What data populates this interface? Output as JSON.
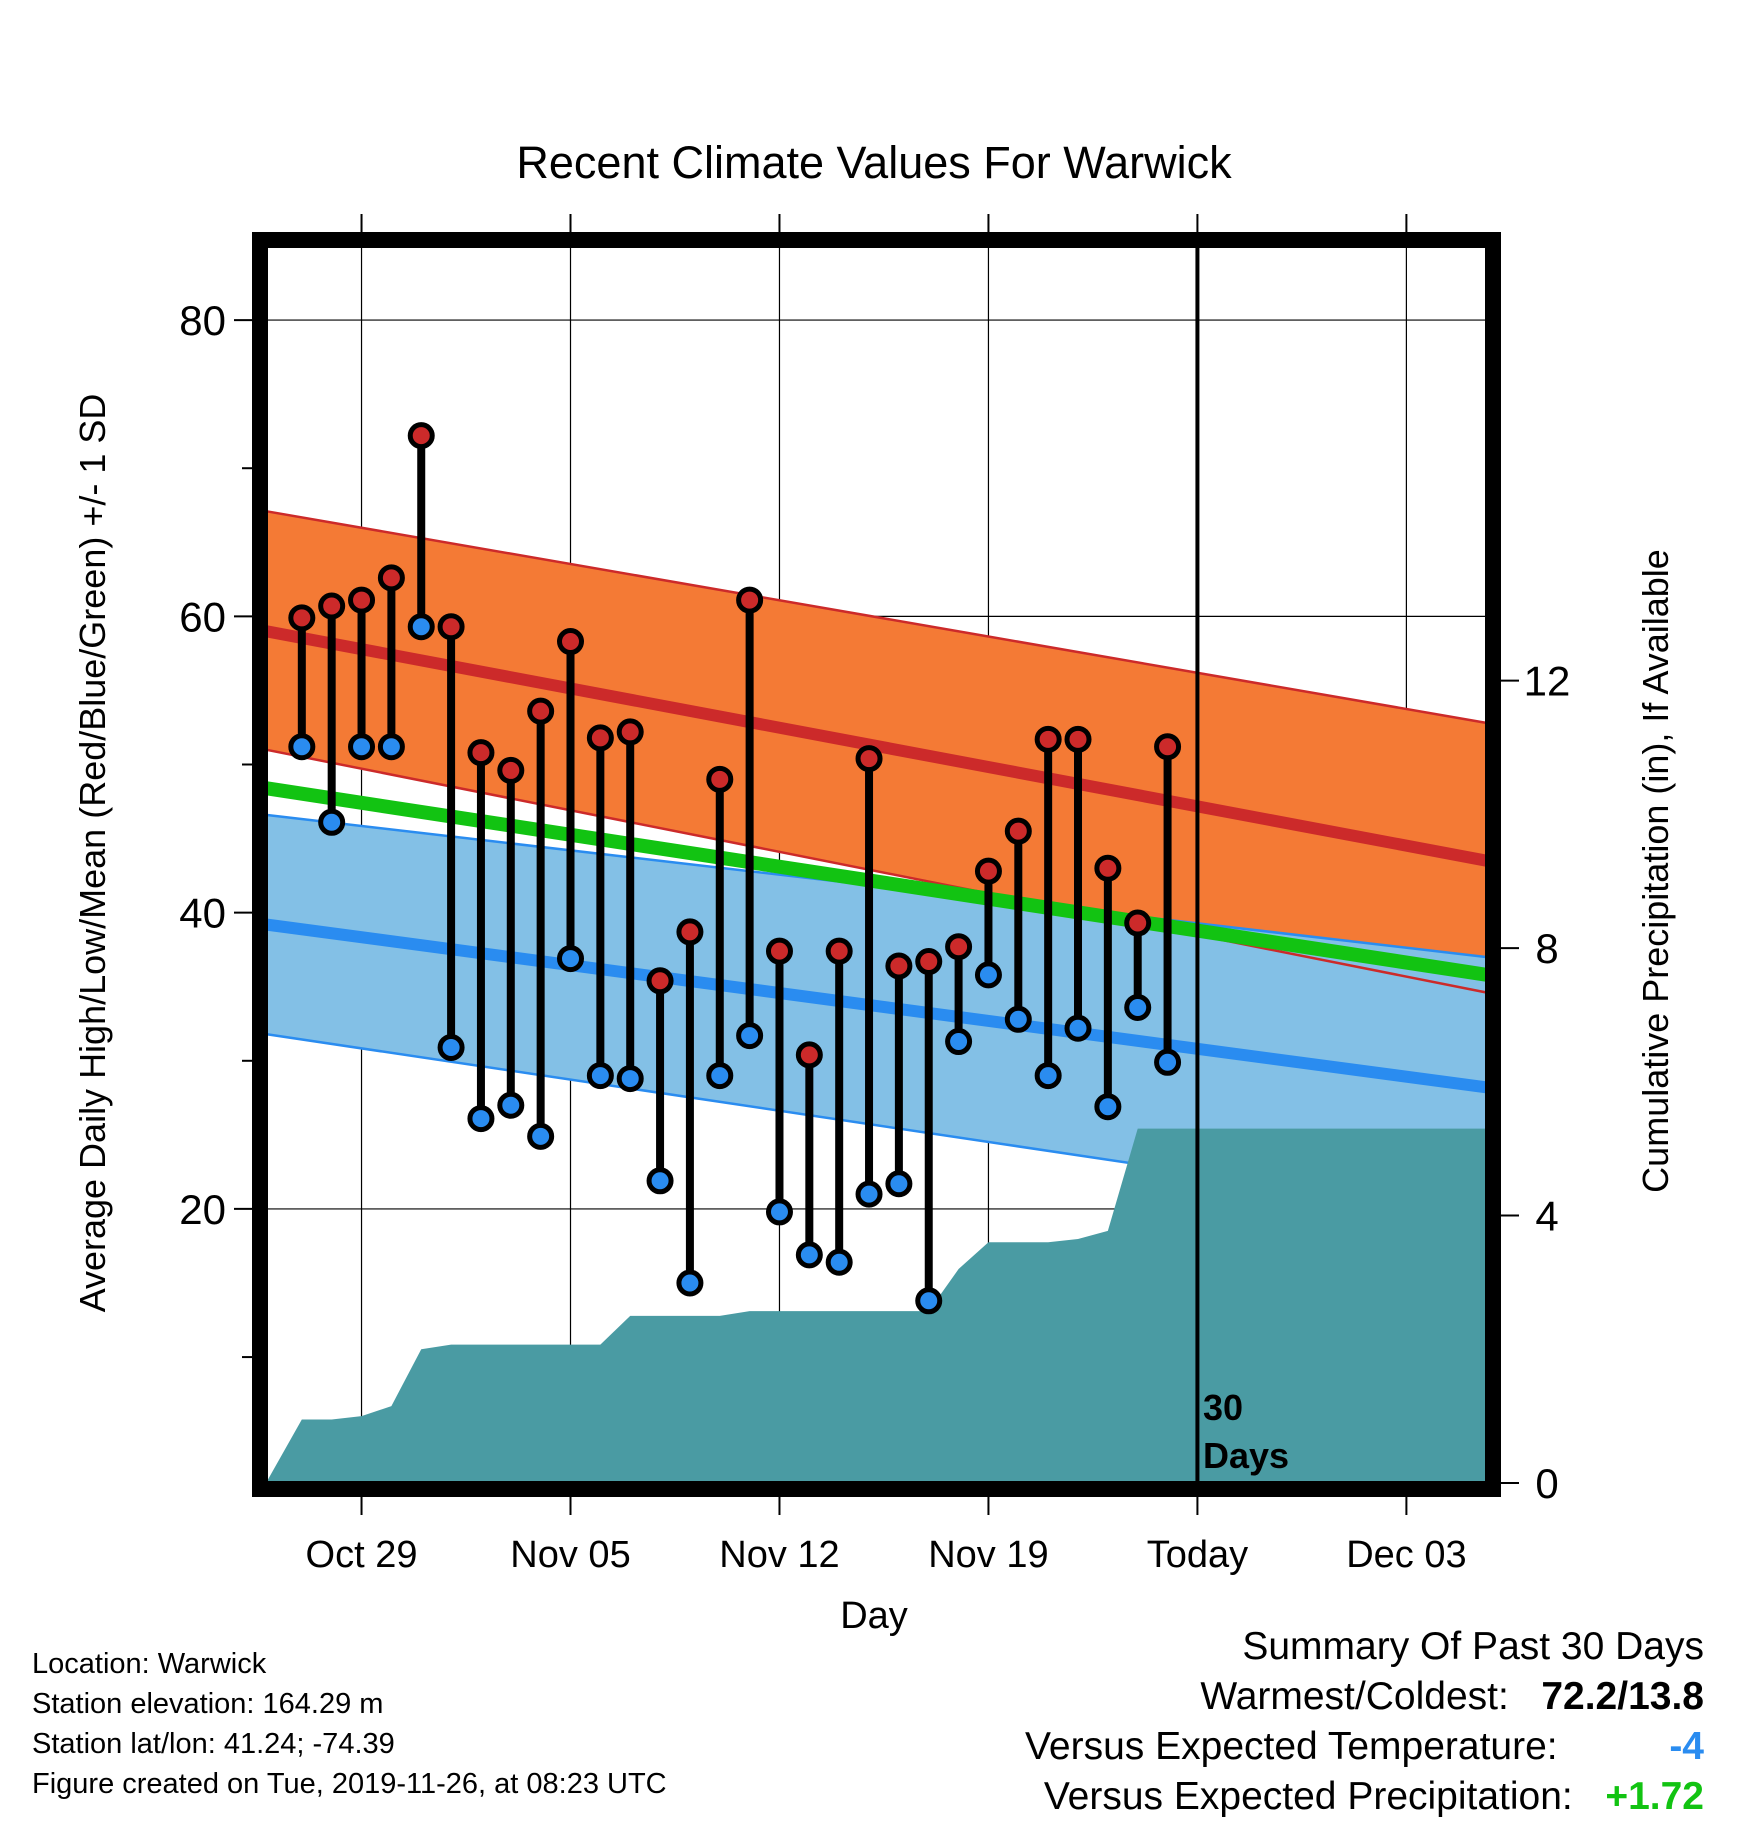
{
  "chart_data": {
    "type": "line",
    "title": "Recent Climate Values For Warwick",
    "xlabel": "Day",
    "ylabel": "Average Daily High/Low/Mean (Red/Blue/Green) +/- 1 SD",
    "y2label": "Cumulative Precipitation (in), If Available",
    "x_ticks": [
      "Oct 29",
      "Nov 05",
      "Nov 12",
      "Nov 19",
      "Today",
      "Dec 03"
    ],
    "x_range_days": [
      -31.2,
      9.7
    ],
    "today_offset": 0,
    "ylim": [
      1.5,
      85
    ],
    "y_ticks": [
      20,
      40,
      60,
      80
    ],
    "y2lim": [
      0,
      18.5
    ],
    "y2_ticks": [
      0,
      4,
      8,
      12
    ],
    "grid": true,
    "annotation": {
      "line1": "30",
      "line2": "Days"
    },
    "normals": {
      "days": [
        -31.2,
        9.7
      ],
      "high_plus_sd": [
        67.1,
        52.8
      ],
      "high_mean": [
        59.0,
        43.5
      ],
      "high_minus_sd": [
        51.0,
        34.6
      ],
      "mean": [
        48.4,
        35.8
      ],
      "low_plus_sd": [
        46.6,
        37.0
      ],
      "low_mean": [
        39.2,
        28.2
      ],
      "low_minus_sd": [
        31.8,
        19.5
      ]
    },
    "observed": {
      "days": [
        -30,
        -29,
        -28,
        -27,
        -26,
        -25,
        -24,
        -23,
        -22,
        -21,
        -20,
        -19,
        -18,
        -17,
        -16,
        -15,
        -14,
        -13,
        -12,
        -11,
        -10,
        -9,
        -8,
        -7,
        -6,
        -5,
        -4,
        -3,
        -2,
        -1
      ],
      "high": [
        59.9,
        60.7,
        61.1,
        62.6,
        72.2,
        59.3,
        50.8,
        49.6,
        53.6,
        58.3,
        51.8,
        52.2,
        35.4,
        38.7,
        49.0,
        61.1,
        37.4,
        30.4,
        37.4,
        50.4,
        36.4,
        36.7,
        37.7,
        42.8,
        45.5,
        51.7,
        51.7,
        43.0,
        39.3,
        51.2
      ],
      "low": [
        51.2,
        46.1,
        51.2,
        51.2,
        59.3,
        30.9,
        26.1,
        27.0,
        24.9,
        36.9,
        29.0,
        28.8,
        21.9,
        15.0,
        29.0,
        31.7,
        19.8,
        16.9,
        16.4,
        21.0,
        21.7,
        13.8,
        31.3,
        35.8,
        32.8,
        29.0,
        32.2,
        26.9,
        33.6,
        29.9
      ]
    },
    "precip": {
      "days": [
        -31.2,
        -30,
        -29,
        -28,
        -27,
        -26,
        -25,
        -24,
        -23,
        -22,
        -21,
        -20,
        -19,
        -18,
        -17,
        -16,
        -15,
        -14,
        -13,
        -12,
        -11,
        -10,
        -9,
        -8,
        -7,
        -6,
        -5,
        -4,
        -3,
        -2,
        -1,
        0,
        9.7
      ],
      "cumulative": [
        0.0,
        0.95,
        0.95,
        1.0,
        1.15,
        2.0,
        2.07,
        2.07,
        2.07,
        2.07,
        2.07,
        2.07,
        2.5,
        2.5,
        2.5,
        2.5,
        2.57,
        2.57,
        2.57,
        2.57,
        2.57,
        2.57,
        2.57,
        3.2,
        3.6,
        3.6,
        3.6,
        3.65,
        3.77,
        5.3,
        5.3,
        5.3,
        5.3
      ]
    },
    "colors": {
      "high_band": "#f47a35",
      "high_line": "#cc2a2a",
      "low_band": "#83c0e6",
      "low_line": "#2a8cf0",
      "mean_line": "#12c312",
      "precip": "#4a9ba3",
      "high_marker": "#cc2a2a",
      "low_marker": "#2a8cf0"
    }
  },
  "info": {
    "location": "Location: Warwick",
    "elevation": "Station elevation: 164.29 m",
    "latlon": "Station lat/lon: 41.24; -74.39",
    "created": "Figure created on Tue, 2019-11-26, at 08:23 UTC"
  },
  "summary": {
    "heading": "Summary Of Past 30 Days",
    "warm_label": "Warmest/Coldest:",
    "warm_value": "72.2/13.8",
    "temp_label": "Versus Expected Temperature:",
    "temp_value": "-4",
    "temp_color": "#2a8cf0",
    "precip_label": "Versus Expected Precipitation:",
    "precip_value": "+1.72",
    "precip_color": "#12c312"
  }
}
